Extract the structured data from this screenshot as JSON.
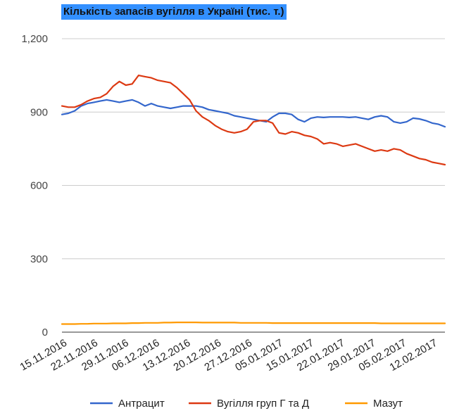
{
  "chart_data": {
    "type": "line",
    "title": "Кількість запасів вугілля в Україні (тис. т.)",
    "xlabel": "",
    "ylabel": "",
    "ylim": [
      0,
      1200
    ],
    "y_ticks": [
      "0",
      "300",
      "600",
      "900",
      "1,200"
    ],
    "y_tick_values": [
      0,
      300,
      600,
      900,
      1200
    ],
    "x_tick_labels": [
      "15.11.2016",
      "22.11.2016",
      "29.11.2016",
      "06.12.2016",
      "13.12.2016",
      "20.12.2016",
      "27.12.2016",
      "05.01.2017",
      "15.01.2017",
      "22.01.2017",
      "29.01.2017",
      "05.02.2017",
      "12.02.2017"
    ],
    "grid": true,
    "legend_position": "bottom",
    "x": [
      "15.11.2016",
      "16.11.2016",
      "17.11.2016",
      "18.11.2016",
      "20.11.2016",
      "22.11.2016",
      "23.11.2016",
      "24.11.2016",
      "25.11.2016",
      "27.11.2016",
      "29.11.2016",
      "30.11.2016",
      "01.12.2016",
      "02.12.2016",
      "04.12.2016",
      "06.12.2016",
      "07.12.2016",
      "08.12.2016",
      "09.12.2016",
      "11.12.2016",
      "13.12.2016",
      "14.12.2016",
      "15.12.2016",
      "16.12.2016",
      "18.12.2016",
      "20.12.2016",
      "21.12.2016",
      "22.12.2016",
      "23.12.2016",
      "25.12.2016",
      "27.12.2016",
      "28.12.2016",
      "29.12.2016",
      "30.12.2016",
      "03.01.2017",
      "05.01.2017",
      "07.01.2017",
      "10.01.2017",
      "12.01.2017",
      "14.01.2017",
      "15.01.2017",
      "16.01.2017",
      "17.01.2017",
      "18.01.2017",
      "20.01.2017",
      "22.01.2017",
      "23.01.2017",
      "24.01.2017",
      "25.01.2017",
      "27.01.2017",
      "29.01.2017",
      "30.01.2017",
      "31.01.2017",
      "01.02.2017",
      "03.02.2017",
      "05.02.2017",
      "06.02.2017",
      "07.02.2017",
      "08.02.2017",
      "10.02.2017",
      "12.02.2017"
    ],
    "series": [
      {
        "name": "Антрацит",
        "color": "#3366cc",
        "values": [
          890,
          895,
          905,
          925,
          935,
          940,
          945,
          950,
          945,
          940,
          945,
          950,
          940,
          925,
          935,
          925,
          920,
          915,
          920,
          925,
          925,
          925,
          920,
          910,
          905,
          900,
          895,
          885,
          880,
          875,
          870,
          865,
          860,
          880,
          895,
          895,
          890,
          870,
          860,
          875,
          880,
          878,
          880,
          880,
          880,
          878,
          880,
          875,
          870,
          880,
          885,
          880,
          860,
          855,
          860,
          875,
          872,
          865,
          855,
          850,
          840
        ]
      },
      {
        "name": "Вугілля груп Г та Д",
        "color": "#dc3912",
        "values": [
          925,
          920,
          920,
          930,
          945,
          955,
          960,
          975,
          1005,
          1025,
          1010,
          1015,
          1050,
          1045,
          1040,
          1030,
          1025,
          1020,
          1000,
          975,
          950,
          905,
          880,
          865,
          845,
          830,
          820,
          815,
          820,
          830,
          860,
          865,
          865,
          855,
          815,
          810,
          820,
          815,
          805,
          800,
          790,
          770,
          775,
          770,
          760,
          765,
          770,
          760,
          750,
          740,
          745,
          740,
          750,
          745,
          730,
          720,
          710,
          705,
          695,
          690,
          685
        ]
      },
      {
        "name": "Мазут",
        "color": "#ff9900",
        "values": [
          33,
          33,
          33,
          34,
          34,
          35,
          35,
          35,
          36,
          36,
          36,
          37,
          37,
          38,
          38,
          38,
          39,
          39,
          40,
          40,
          40,
          40,
          39,
          39,
          39,
          39,
          39,
          39,
          38,
          38,
          38,
          38,
          38,
          37,
          37,
          37,
          37,
          37,
          37,
          37,
          37,
          37,
          37,
          37,
          37,
          37,
          37,
          37,
          37,
          37,
          36,
          36,
          36,
          36,
          36,
          36,
          36,
          36,
          36,
          36,
          36
        ]
      }
    ]
  }
}
